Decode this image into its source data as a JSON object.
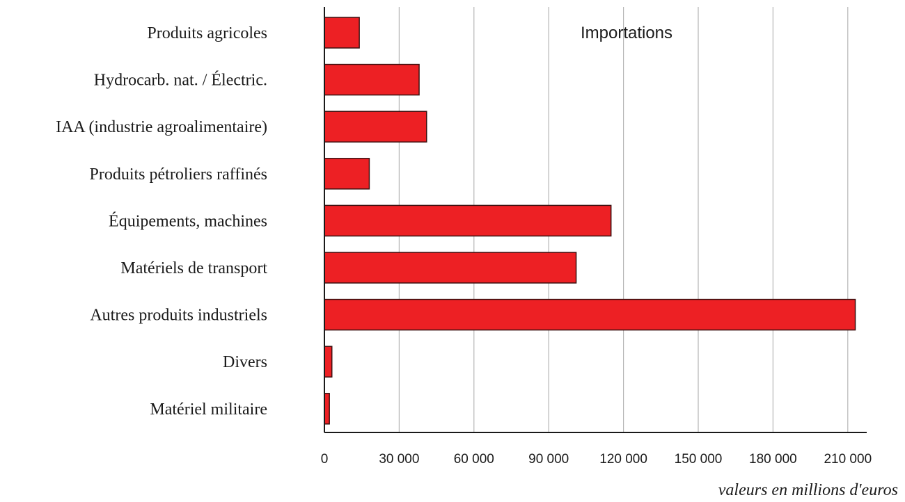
{
  "chart_data": {
    "type": "bar",
    "orientation": "horizontal",
    "title": "Importations",
    "xlabel": "valeurs en millions d'euros",
    "ylabel": "",
    "categories": [
      "Produits agricoles",
      "Hydrocarb. nat. / Électric.",
      "IAA (industrie agroalimentaire)",
      "Produits pétroliers raffinés",
      "Équipements, machines",
      "Matériels de transport",
      "Autres produits industriels",
      "Divers",
      "Matériel militaire"
    ],
    "values": [
      14000,
      38000,
      41000,
      18000,
      115000,
      101000,
      213000,
      3000,
      2000
    ],
    "xlim": [
      0,
      220000
    ],
    "xticks": [
      0,
      30000,
      60000,
      90000,
      120000,
      150000,
      180000,
      210000
    ],
    "xtick_labels": [
      "0",
      "30 000",
      "60 000",
      "90 000",
      "120 000",
      "150 000",
      "180 000",
      "210 000"
    ],
    "grid": true,
    "colors": {
      "bar_fill": "#ed2024",
      "bar_stroke": "#3a1010",
      "grid": "#b5b5b5",
      "axis": "#1a1a1a"
    }
  }
}
